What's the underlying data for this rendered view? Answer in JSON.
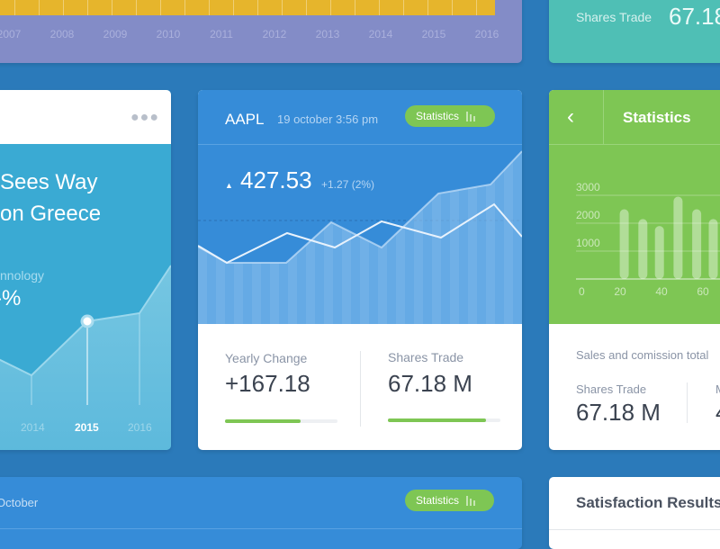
{
  "top_left_card": {
    "years": [
      "2007",
      "2008",
      "2009",
      "2010",
      "2011",
      "2012",
      "2013",
      "2014",
      "2015",
      "2016"
    ],
    "bar_color": "#e6b52c"
  },
  "top_right_card": {
    "label": "Shares Trade",
    "value": "67.18"
  },
  "news_card": {
    "title_line1": "Sees Way",
    "title_line2": "on Greece",
    "category": "nnology",
    "value": "-%",
    "x_labels": [
      "2014",
      "2015",
      "2016"
    ],
    "selected_label": "2015",
    "menu_icon": "more-dots-icon"
  },
  "aapl_card": {
    "ticker": "AAPL",
    "datetime": "19 october 3:56 pm",
    "stats_button": "Statistics",
    "price": "427.53",
    "change": "+1.27 (2%)",
    "trend_icon": "triangle-up-icon",
    "yearly_change_label": "Yearly Change",
    "yearly_change_value": "+167.18",
    "yearly_change_progress": 0.67,
    "shares_trade_label": "Shares Trade",
    "shares_trade_value": "67.18 M",
    "shares_trade_progress": 0.87
  },
  "stats_card": {
    "title": "Statistics",
    "back_icon": "chevron-left-icon",
    "subtitle": "Sales and comission total",
    "shares_trade_label": "Shares Trade",
    "shares_trade_value": "67.18 M",
    "next_label": "M",
    "next_value": "4",
    "chart_data": {
      "type": "bar",
      "y_ticks": [
        "3000",
        "2000",
        "1000"
      ],
      "x_ticks": [
        "0",
        "20",
        "40",
        "60"
      ],
      "xlim": [
        0,
        70
      ],
      "ylim": [
        0,
        3000
      ],
      "x": [
        22,
        31,
        39,
        48,
        57,
        65,
        73
      ],
      "values": [
        2500,
        2150,
        1900,
        2950,
        2500,
        2150,
        2100
      ]
    }
  },
  "bottom_card": {
    "date": "October",
    "stats_button": "Statistics"
  },
  "satisfaction_card": {
    "title": "Satisfaction Results"
  },
  "colors": {
    "background": "#2b7aba",
    "green": "#7ec654",
    "blue": "#368cd8",
    "purple": "#838cc7",
    "teal": "#4fbfb5"
  }
}
